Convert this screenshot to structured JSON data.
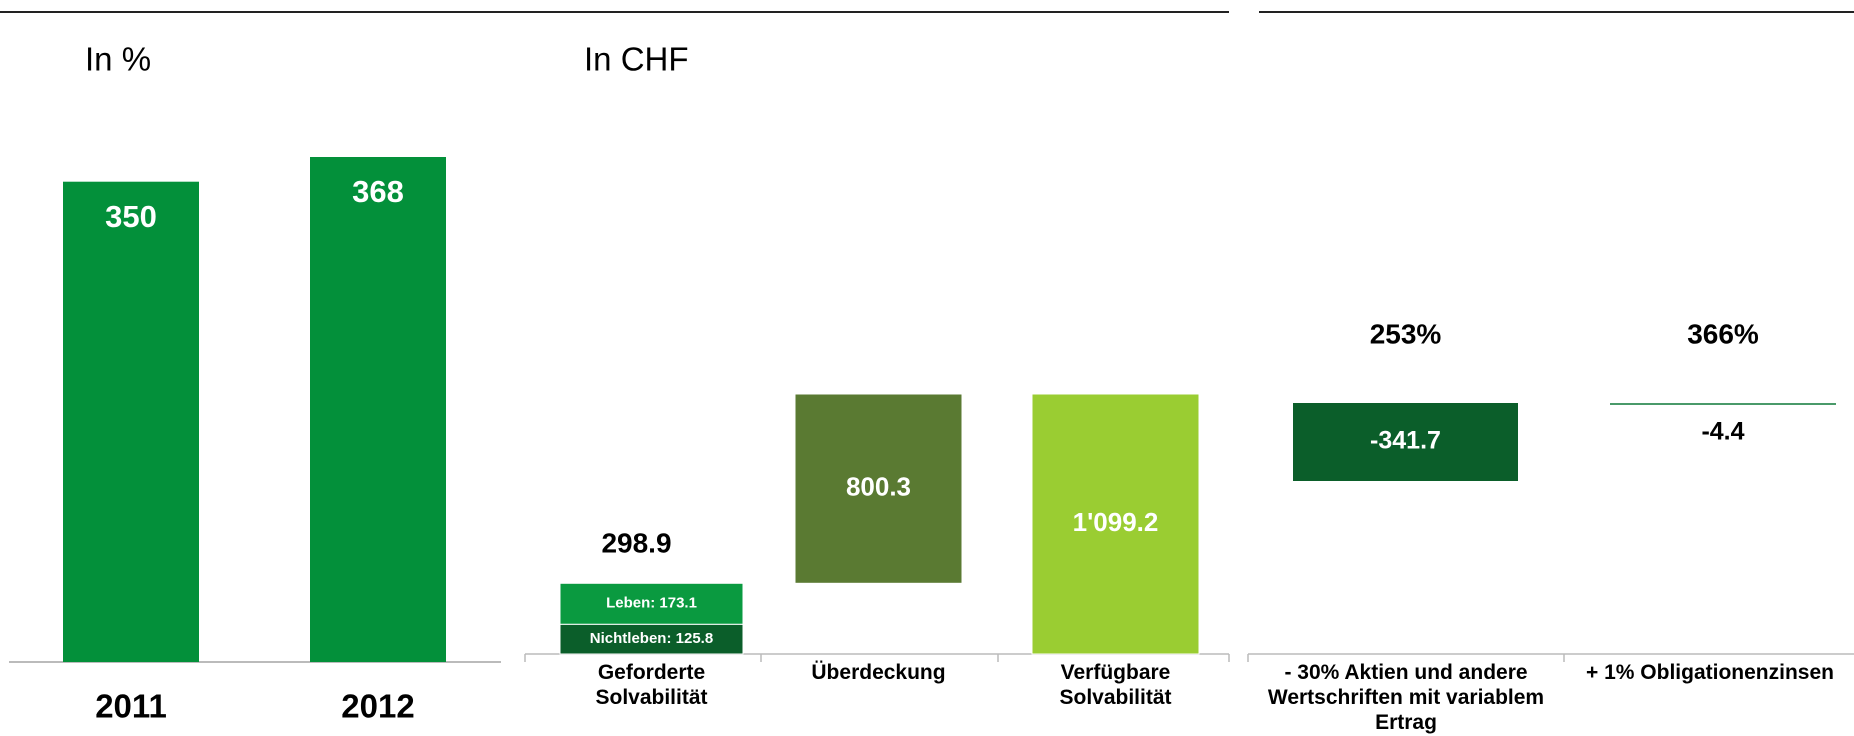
{
  "chart_data": [
    {
      "type": "bar",
      "subtitle": "In %",
      "categories": [
        "2011",
        "2012"
      ],
      "values": [
        350,
        368
      ],
      "color": "#03903a"
    },
    {
      "type": "waterfall",
      "subtitle": "In CHF",
      "categories": [
        "Geforderte Solvabilität",
        "Überdeckung",
        "Verfügbare Solvabilität"
      ],
      "series": [
        {
          "color": "#0b5e2a",
          "values": [
            125.8,
            null,
            null
          ],
          "value_labels": [
            "Nichtleben: 125.8",
            null,
            null
          ]
        },
        {
          "color": "#0a9a40",
          "values": [
            173.1,
            null,
            null
          ],
          "value_labels": [
            "Leben: 173.1",
            null,
            null
          ]
        },
        {
          "color": "#5a7a32",
          "values": [
            null,
            800.3,
            null
          ],
          "value_labels": [
            null,
            "800.3",
            null
          ]
        },
        {
          "color": "#9acd32",
          "values": [
            null,
            null,
            1099.2
          ],
          "value_labels": [
            null,
            null,
            "1'099.2"
          ]
        }
      ],
      "totals": [
        298.9,
        null,
        null
      ]
    },
    {
      "type": "sensitivity",
      "categories": [
        "- 30% Aktien und andere Wertschriften mit variablem Ertrag",
        "+ 1% Obligationenzinsen"
      ],
      "values": [
        -341.7,
        -4.4
      ],
      "colors": [
        "#0b5e2a",
        "#4a9a6a"
      ],
      "ratios": [
        253,
        366
      ],
      "ratio_labels": [
        "253%",
        "366%"
      ]
    }
  ]
}
